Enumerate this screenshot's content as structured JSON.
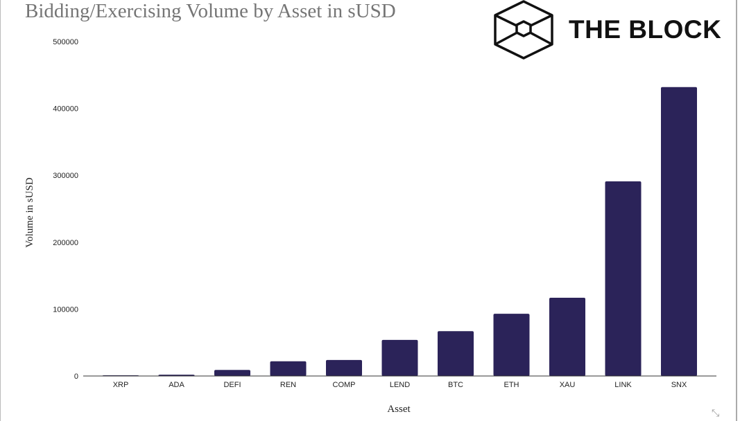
{
  "chart_data": {
    "type": "bar",
    "title": "Bidding/Exercising Volume by Asset in sUSD",
    "xlabel": "Asset",
    "ylabel": "Volume in sUSD",
    "ylim": [
      0,
      500000
    ],
    "yticks": [
      "0",
      "100000",
      "200000",
      "300000",
      "400000",
      "500000"
    ],
    "categories": [
      "XRP",
      "ADA",
      "DEFI",
      "REN",
      "COMP",
      "LEND",
      "BTC",
      "ETH",
      "XAU",
      "LINK",
      "SNX"
    ],
    "values": [
      1000,
      2000,
      9000,
      22000,
      24000,
      54000,
      67000,
      93000,
      117000,
      291000,
      432000
    ],
    "grid": false,
    "bar_color": "#2b2359"
  },
  "branding": {
    "logo_text": "THE BLOCK"
  }
}
